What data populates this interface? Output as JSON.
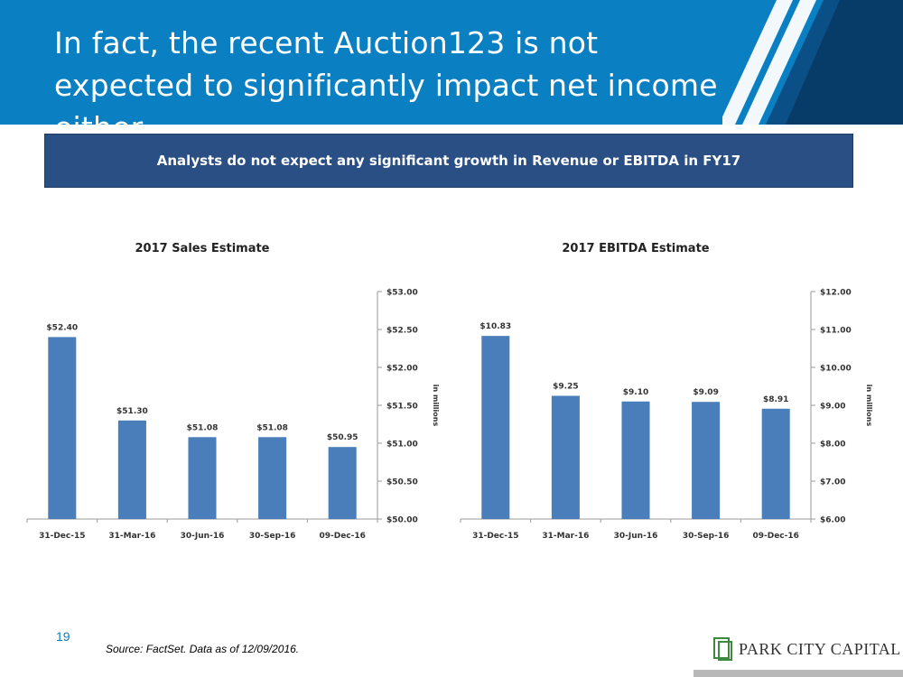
{
  "header": {
    "title": "In fact, the recent Auction123 is not expected to significantly impact net income either"
  },
  "banner": {
    "text": "Analysts do not expect any significant growth in Revenue or EBITDA in FY17"
  },
  "chart_data": [
    {
      "type": "bar",
      "title": "2017 Sales Estimate",
      "categories": [
        "31-Dec-15",
        "31-Mar-16",
        "30-Jun-16",
        "30-Sep-16",
        "09-Dec-16"
      ],
      "values": [
        52.4,
        51.3,
        51.08,
        51.08,
        50.95
      ],
      "value_labels": [
        "$52.40",
        "$51.30",
        "$51.08",
        "$51.08",
        "$50.95"
      ],
      "ylim": [
        50.0,
        53.0
      ],
      "yticks": [
        50.0,
        50.5,
        51.0,
        51.5,
        52.0,
        52.5,
        53.0
      ],
      "ytick_labels": [
        "$50.00",
        "$50.50",
        "$51.00",
        "$51.50",
        "$52.00",
        "$52.50",
        "$53.00"
      ],
      "ylabel": "in millions",
      "axis_side": "right",
      "bar_color": "#4a7ebb",
      "grid": false
    },
    {
      "type": "bar",
      "title": "2017 EBITDA Estimate",
      "categories": [
        "31-Dec-15",
        "31-Mar-16",
        "30-Jun-16",
        "30-Sep-16",
        "09-Dec-16"
      ],
      "values": [
        10.83,
        9.25,
        9.1,
        9.09,
        8.91
      ],
      "value_labels": [
        "$10.83",
        "$9.25",
        "$9.10",
        "$9.09",
        "$8.91"
      ],
      "ylim": [
        6.0,
        12.0
      ],
      "yticks": [
        6,
        7,
        8,
        9,
        10,
        11,
        12
      ],
      "ytick_labels": [
        "$6.00",
        "$7.00",
        "$8.00",
        "$9.00",
        "$10.00",
        "$11.00",
        "$12.00"
      ],
      "ylabel": "in millions",
      "axis_side": "right",
      "bar_color": "#4a7ebb",
      "grid": false
    }
  ],
  "footer": {
    "page_number": "19",
    "source": "Source: FactSet. Data as of 12/09/2016.",
    "logo_text": "PARK CITY CAPITAL",
    "logo_icon": "park-city-logo-icon"
  },
  "colors": {
    "header_bg": "#0a7fc1",
    "banner_bg": "#2a4f84",
    "accent": "#0a7fc1",
    "logo_green": "#3b8a3e"
  }
}
